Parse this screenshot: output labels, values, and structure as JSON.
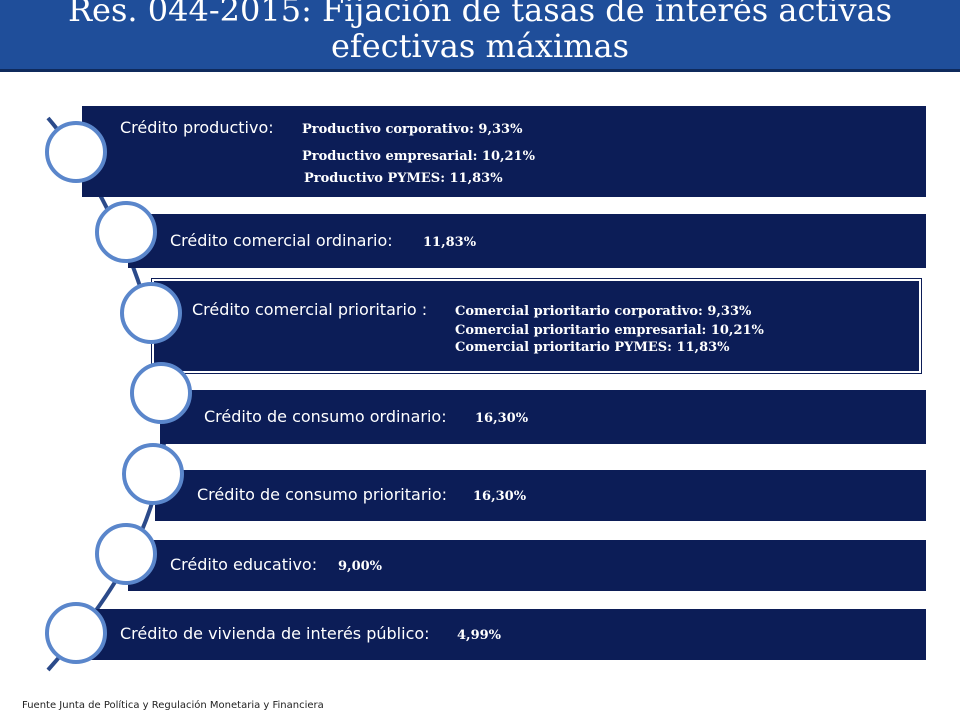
{
  "title": "Res. 044-2015: Fijación de tasas de interés activas efectivas máximas",
  "items": [
    {
      "label": "Crédito productivo:",
      "values": [
        "Productivo corporativo: 9,33%",
        "Productivo empresarial: 10,21%",
        "Productivo PYMES: 11,83%"
      ]
    },
    {
      "label": "Crédito comercial ordinario:",
      "values": [
        "11,83%"
      ]
    },
    {
      "label": "Crédito comercial prioritario :",
      "values": [
        "Comercial prioritario corporativo: 9,33%",
        "Comercial prioritario empresarial: 10,21%",
        "Comercial prioritario PYMES: 11,83%"
      ]
    },
    {
      "label": "Crédito de consumo ordinario:",
      "values": [
        "16,30%"
      ]
    },
    {
      "label": "Crédito de consumo prioritario:",
      "values": [
        "16,30%"
      ]
    },
    {
      "label": "Crédito educativo:",
      "values": [
        "9,00%"
      ]
    },
    {
      "label": "Crédito de vivienda de interés público:",
      "values": [
        "4,99%"
      ]
    }
  ],
  "footer": "Fuente Junta de Política y Regulación Monetaria y Financiera",
  "colors": {
    "title_bg": "#1f4e9a",
    "bar_bg": "#0c1d57",
    "circle_border": "#5a86cb",
    "spine": "#2b4a8a"
  }
}
